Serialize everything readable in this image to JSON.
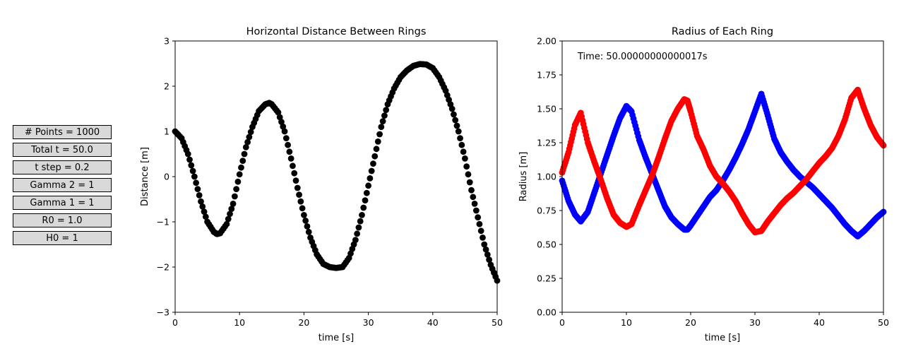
{
  "parameters": [
    {
      "label": "# Points = 1000"
    },
    {
      "label": "Total t = 50.0"
    },
    {
      "label": "t step = 0.2"
    },
    {
      "label": "Gamma 2 = 1"
    },
    {
      "label": "Gamma 1 = 1"
    },
    {
      "label": "R0 = 1.0"
    },
    {
      "label": "H0 = 1"
    }
  ],
  "chart_data": [
    {
      "type": "scatter",
      "title": "Horizontal Distance Between Rings",
      "xlabel": "time [s]",
      "ylabel": "Distance [m]",
      "xlim": [
        0,
        50
      ],
      "ylim": [
        -3,
        3
      ],
      "xticks": [
        "0",
        "10",
        "20",
        "30",
        "40",
        "50"
      ],
      "yticks": [
        "−3",
        "−2",
        "−1",
        "0",
        "1",
        "2",
        "3"
      ],
      "grid": false,
      "series": [
        {
          "color": "#000000",
          "x": [
            0,
            1,
            2,
            3,
            4,
            5,
            6,
            6.5,
            7,
            8,
            9,
            10,
            11,
            12,
            13,
            14,
            14.6,
            15,
            16,
            17,
            18,
            19,
            20,
            21,
            22,
            23,
            24,
            25,
            26,
            27,
            28,
            29,
            30,
            31,
            32,
            33,
            34,
            35,
            36,
            37,
            38,
            39,
            40,
            41,
            42,
            43,
            44,
            45,
            46,
            47,
            48,
            49,
            50
          ],
          "y": [
            1.0,
            0.85,
            0.5,
            0.0,
            -0.55,
            -1.0,
            -1.22,
            -1.27,
            -1.25,
            -1.05,
            -0.6,
            0.05,
            0.65,
            1.1,
            1.45,
            1.6,
            1.63,
            1.6,
            1.42,
            1.0,
            0.4,
            -0.25,
            -0.85,
            -1.35,
            -1.72,
            -1.93,
            -2.0,
            -2.02,
            -2.0,
            -1.8,
            -1.4,
            -0.85,
            -0.2,
            0.45,
            1.1,
            1.6,
            1.95,
            2.2,
            2.35,
            2.45,
            2.49,
            2.48,
            2.4,
            2.2,
            1.9,
            1.5,
            1.0,
            0.4,
            -0.3,
            -0.9,
            -1.5,
            -1.95,
            -2.3
          ]
        }
      ]
    },
    {
      "type": "scatter",
      "title": "Radius of Each Ring",
      "xlabel": "time [s]",
      "ylabel": "Radius [m]",
      "xlim": [
        0,
        50
      ],
      "ylim": [
        0,
        2
      ],
      "xticks": [
        "0",
        "10",
        "20",
        "30",
        "40",
        "50"
      ],
      "yticks": [
        "0.00",
        "0.25",
        "0.50",
        "0.75",
        "1.00",
        "1.25",
        "1.50",
        "1.75",
        "2.00"
      ],
      "grid": false,
      "annotation": "Time: 50.00000000000017s",
      "annotation_position": "top-left",
      "series": [
        {
          "color": "#0000ff",
          "x": [
            0,
            1,
            2,
            2.9,
            4,
            5,
            6,
            7,
            8,
            9,
            10,
            10.8,
            12,
            13,
            14,
            15,
            16,
            17,
            18,
            19,
            19.5,
            20,
            21,
            22,
            23,
            24,
            25,
            26,
            27,
            28,
            29,
            30,
            31,
            32,
            33,
            34,
            35,
            36,
            37,
            38,
            39,
            40,
            41,
            42,
            43,
            44,
            45,
            46,
            47,
            48,
            49,
            50
          ],
          "y": [
            0.97,
            0.82,
            0.72,
            0.67,
            0.74,
            0.88,
            1.02,
            1.16,
            1.3,
            1.43,
            1.52,
            1.48,
            1.27,
            1.14,
            1.02,
            0.9,
            0.78,
            0.7,
            0.65,
            0.61,
            0.61,
            0.64,
            0.71,
            0.78,
            0.85,
            0.9,
            0.97,
            1.05,
            1.14,
            1.24,
            1.35,
            1.48,
            1.61,
            1.45,
            1.28,
            1.18,
            1.11,
            1.05,
            1.0,
            0.96,
            0.92,
            0.87,
            0.82,
            0.77,
            0.71,
            0.65,
            0.6,
            0.56,
            0.6,
            0.65,
            0.7,
            0.74
          ]
        },
        {
          "color": "#ff0000",
          "x": [
            0,
            1,
            2,
            2.9,
            4,
            5,
            6,
            7,
            8,
            9,
            10,
            10.8,
            12,
            13,
            14,
            15,
            16,
            17,
            18,
            19,
            19.5,
            20,
            21,
            22,
            23,
            24,
            25,
            26,
            27,
            28,
            29,
            30,
            31,
            32,
            33,
            34,
            35,
            36,
            37,
            38,
            39,
            40,
            41,
            42,
            43,
            44,
            45,
            46,
            47,
            48,
            49,
            50
          ],
          "y": [
            1.03,
            1.18,
            1.38,
            1.47,
            1.25,
            1.11,
            0.98,
            0.84,
            0.72,
            0.66,
            0.63,
            0.65,
            0.79,
            0.9,
            1.01,
            1.14,
            1.28,
            1.41,
            1.5,
            1.57,
            1.56,
            1.48,
            1.3,
            1.2,
            1.08,
            1.0,
            0.95,
            0.89,
            0.82,
            0.73,
            0.65,
            0.59,
            0.6,
            0.67,
            0.73,
            0.79,
            0.84,
            0.88,
            0.93,
            0.98,
            1.04,
            1.1,
            1.15,
            1.21,
            1.3,
            1.42,
            1.58,
            1.64,
            1.5,
            1.38,
            1.29,
            1.23
          ]
        }
      ]
    }
  ]
}
